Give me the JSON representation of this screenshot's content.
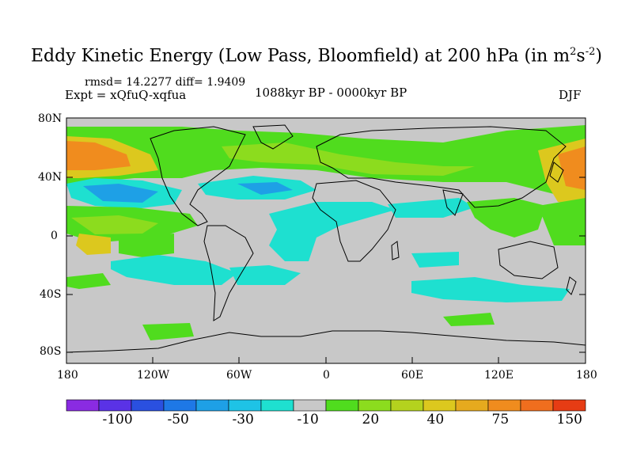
{
  "title": "Eddy Kinetic Energy (Low Pass, Bloomfield) at 200 hPa (in m",
  "title_sup1": "2",
  "title_mid": "s",
  "title_sup2": "-2",
  "title_end": ")",
  "stats": "rmsd= 14.2277  diff= 1.9409",
  "experiment": "Expt = xQfuQ-xqfua",
  "period": "1088kyr BP - 0000kyr BP",
  "season": "DJF",
  "lat_labels": [
    "80N",
    "40N",
    "0",
    "40S",
    "80S"
  ],
  "lon_labels": [
    "180",
    "120W",
    "60W",
    "0",
    "60E",
    "120E",
    "180"
  ],
  "colorbar": {
    "labels": [
      "-100",
      "-50",
      "-30",
      "-10",
      "20",
      "40",
      "75",
      "150"
    ],
    "colors": [
      "#8a2be2",
      "#5a32e6",
      "#2a50e0",
      "#1e78e6",
      "#1ea0e6",
      "#1ec3e6",
      "#1ee0d0",
      "#c8c8c8",
      "#50dc1e",
      "#8cdc1e",
      "#b4d21e",
      "#dcc81e",
      "#e6aa1e",
      "#f08c1e",
      "#f06e1e",
      "#e63c14"
    ]
  },
  "colors": {
    "land_neutral": "#c8c8c8",
    "cyan": "#1ee0d0",
    "blue": "#1ea0e6",
    "green": "#50dc1e",
    "lightgreen": "#8cdc1e",
    "yellow": "#dcc81e",
    "orange": "#f08c1e"
  }
}
